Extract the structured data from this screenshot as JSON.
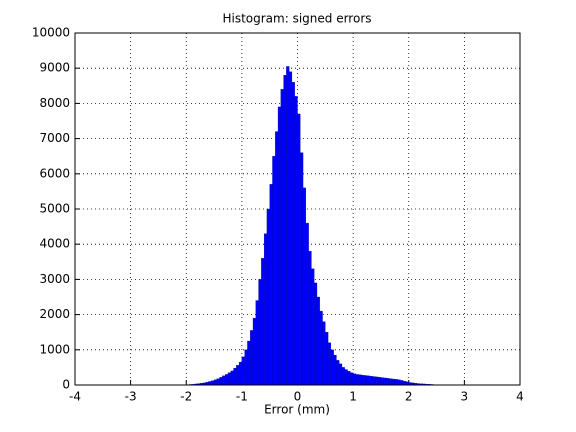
{
  "chart_data": {
    "type": "histogram",
    "title": "Histogram: signed errors",
    "x_label": "Error (mm)",
    "color": "#0000ff",
    "bins": [
      -2,
      -1.95,
      -1.9,
      -1.85,
      -1.8,
      -1.75,
      -1.7,
      -1.65,
      -1.6,
      -1.55,
      -1.5,
      -1.45,
      -1.4,
      -1.35,
      -1.3,
      -1.25,
      -1.2,
      -1.15,
      -1.1,
      -1.05,
      -1,
      -0.95,
      -0.9,
      -0.85,
      -0.8,
      -0.75,
      -0.7,
      -0.65,
      -0.6,
      -0.55,
      -0.5,
      -0.45,
      -0.4,
      -0.35,
      -0.3,
      -0.25,
      -0.2,
      -0.15,
      -0.1,
      -0.05,
      0,
      0.05,
      0.1,
      0.15,
      0.2,
      0.25,
      0.3,
      0.35,
      0.4,
      0.45,
      0.5,
      0.55,
      0.6,
      0.65,
      0.7,
      0.75,
      0.8,
      0.85,
      0.9,
      0.95,
      1,
      1.05,
      1.1,
      1.15,
      1.2,
      1.25,
      1.3,
      1.35,
      1.4,
      1.45,
      1.5,
      1.55,
      1.6,
      1.65,
      1.7,
      1.75,
      1.8,
      1.85,
      1.9,
      1.95,
      2,
      2.05,
      2.1,
      2.15,
      2.2,
      2.25,
      2.3,
      2.35,
      2.4,
      2.45,
      2.5,
      2.55,
      2.6
    ],
    "counts": [
      10,
      15,
      20,
      30,
      40,
      50,
      60,
      80,
      100,
      120,
      150,
      180,
      220,
      260,
      300,
      350,
      400,
      480,
      560,
      650,
      800,
      1000,
      1250,
      1550,
      1900,
      2400,
      3000,
      3600,
      4300,
      5000,
      5700,
      6500,
      7200,
      7900,
      8400,
      8800,
      9050,
      8900,
      8600,
      8200,
      7700,
      6600,
      5600,
      4600,
      3800,
      3300,
      2900,
      2500,
      2100,
      1800,
      1500,
      1200,
      1000,
      850,
      700,
      600,
      500,
      440,
      390,
      350,
      320,
      300,
      290,
      280,
      270,
      260,
      250,
      240,
      230,
      220,
      210,
      200,
      190,
      180,
      170,
      160,
      150,
      130,
      110,
      90,
      70,
      60,
      50,
      40,
      35,
      30,
      25,
      20,
      15,
      10,
      8,
      5
    ],
    "xlim": [
      -4,
      4
    ],
    "xticks": [
      -4,
      -3,
      -2,
      -1,
      0,
      1,
      2,
      3,
      4
    ],
    "ylim": [
      0,
      10000
    ],
    "yticks": [
      0,
      1000,
      2000,
      3000,
      4000,
      5000,
      6000,
      7000,
      8000,
      9000,
      10000
    ],
    "grid": true
  }
}
